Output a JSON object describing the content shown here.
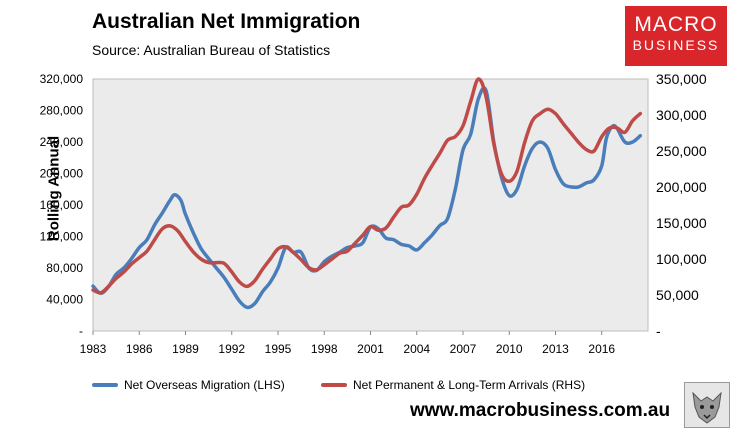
{
  "header": {
    "title": "Australian Net Immigration",
    "source": "Source: Australian Bureau of Statistics"
  },
  "logo": {
    "line1": "MACRO",
    "line2": "BUSINESS"
  },
  "footer": {
    "website": "www.macrobusiness.com.au"
  },
  "colors": {
    "lhs": "#4a7ebb",
    "rhs": "#be4b48",
    "plot_bg": "#ebebeb",
    "brand": "#d8262b"
  },
  "icons": [
    "wolf-logo-icon"
  ],
  "chart_data": {
    "type": "line",
    "title": "Australian Net Immigration",
    "ylabel": "Rolling Annual",
    "xlabel": "",
    "xlim": [
      1983,
      2019
    ],
    "x_ticks": [
      "1983",
      "1986",
      "1989",
      "1992",
      "1995",
      "1998",
      "2001",
      "2004",
      "2007",
      "2010",
      "2013",
      "2016"
    ],
    "left_axis": {
      "ylim": [
        0,
        320000
      ],
      "ticks": [
        "-",
        "40,000",
        "80,000",
        "120,000",
        "160,000",
        "200,000",
        "240,000",
        "280,000",
        "320,000"
      ]
    },
    "right_axis": {
      "ylim": [
        0,
        350000
      ],
      "ticks": [
        "-",
        "50,000",
        "100,000",
        "150,000",
        "200,000",
        "250,000",
        "300,000",
        "350,000"
      ]
    },
    "legend": "bottom",
    "series": [
      {
        "name": "Net Overseas Migration (LHS)",
        "axis": "left",
        "x": [
          1983,
          1983.5,
          1984,
          1984.5,
          1985,
          1985.5,
          1986,
          1986.5,
          1987,
          1987.5,
          1988,
          1988.3,
          1988.7,
          1989,
          1989.5,
          1990,
          1990.5,
          1991,
          1991.5,
          1992,
          1992.5,
          1993,
          1993.5,
          1994,
          1994.5,
          1995,
          1995.5,
          1996,
          1996.5,
          1997,
          1997.5,
          1998,
          1998.5,
          1999,
          1999.5,
          2000,
          2000.5,
          2001,
          2001.5,
          2002,
          2002.5,
          2003,
          2003.5,
          2004,
          2004.5,
          2005,
          2005.5,
          2006,
          2006.5,
          2007,
          2007.5,
          2008,
          2008.5,
          2009,
          2009.5,
          2010,
          2010.5,
          2011,
          2011.5,
          2012,
          2012.5,
          2013,
          2013.5,
          2014,
          2014.5,
          2015,
          2015.5,
          2016,
          2016.3,
          2016.7,
          2017,
          2017.5,
          2018,
          2018.5
        ],
        "y": [
          57000,
          48000,
          56000,
          72000,
          80000,
          92000,
          106000,
          116000,
          135000,
          150000,
          166000,
          173000,
          166000,
          148000,
          125000,
          105000,
          92000,
          80000,
          68000,
          53000,
          38000,
          30000,
          35000,
          50000,
          62000,
          80000,
          106000,
          100000,
          100000,
          80000,
          77000,
          88000,
          95000,
          100000,
          106000,
          108000,
          112000,
          132000,
          130000,
          118000,
          116000,
          110000,
          108000,
          103000,
          112000,
          122000,
          134000,
          143000,
          180000,
          230000,
          250000,
          295000,
          305000,
          240000,
          195000,
          172000,
          180000,
          210000,
          232000,
          240000,
          232000,
          205000,
          187000,
          183000,
          183000,
          188000,
          192000,
          210000,
          245000,
          260000,
          257000,
          240000,
          240000,
          248000
        ]
      },
      {
        "name": "Net Permanent & Long-Term Arrivals (RHS)",
        "axis": "right",
        "x": [
          1983,
          1983.5,
          1984,
          1984.5,
          1985,
          1985.5,
          1986,
          1986.5,
          1987,
          1987.5,
          1988,
          1988.5,
          1989,
          1989.5,
          1990,
          1990.5,
          1991,
          1991.5,
          1992,
          1992.5,
          1993,
          1993.5,
          1994,
          1994.5,
          1995,
          1995.5,
          1996,
          1996.5,
          1997,
          1997.5,
          1998,
          1998.5,
          1999,
          1999.5,
          2000,
          2000.5,
          2001,
          2001.5,
          2002,
          2002.5,
          2003,
          2003.5,
          2004,
          2004.5,
          2005,
          2005.5,
          2006,
          2006.5,
          2007,
          2007.5,
          2008,
          2008.5,
          2009,
          2009.5,
          2010,
          2010.5,
          2011,
          2011.5,
          2012,
          2012.5,
          2013,
          2013.5,
          2014,
          2014.5,
          2015,
          2015.5,
          2016,
          2016.5,
          2017,
          2017.5,
          2018,
          2018.5
        ],
        "y": [
          57000,
          53000,
          62000,
          73000,
          82000,
          93000,
          102000,
          111000,
          127000,
          142000,
          146000,
          139000,
          124000,
          110000,
          100000,
          95000,
          95000,
          94000,
          82000,
          68000,
          62000,
          70000,
          86000,
          100000,
          114000,
          117000,
          109000,
          99000,
          88000,
          85000,
          92000,
          100000,
          108000,
          111000,
          122000,
          133000,
          145000,
          140000,
          143000,
          158000,
          172000,
          175000,
          190000,
          212000,
          230000,
          247000,
          265000,
          270000,
          285000,
          319000,
          350000,
          325000,
          260000,
          218000,
          208000,
          222000,
          262000,
          292000,
          302000,
          308000,
          302000,
          288000,
          275000,
          262000,
          252000,
          250000,
          270000,
          282000,
          282000,
          276000,
          292000,
          302000
        ]
      }
    ]
  }
}
